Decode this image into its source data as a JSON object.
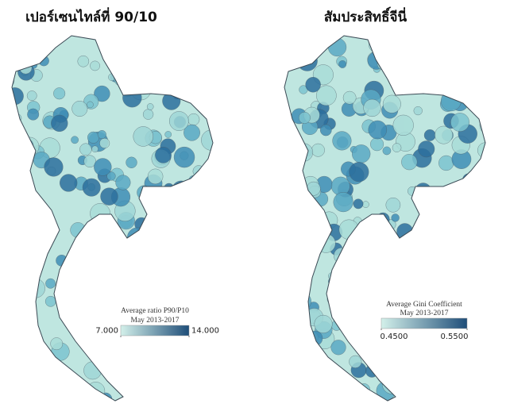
{
  "maps": [
    {
      "title": "เปอร์เซนไทล์ที่ 90/10",
      "legend": {
        "title": "Average ratio P90/P10",
        "subtitle": "May 2013-2017",
        "min": {
          "value": 7,
          "label": "7.000"
        },
        "max": {
          "value": 14,
          "label": "14.000"
        },
        "colors": [
          "#d3f0ea",
          "#1f4e79"
        ]
      }
    },
    {
      "title": "สัมประสิทธิ์จีนี่",
      "legend": {
        "title": "Average Gini Coefficient",
        "subtitle": "May 2013-2017",
        "min": {
          "value": 0.45,
          "label": "0.4500"
        },
        "max": {
          "value": 0.55,
          "label": "0.5500"
        },
        "colors": [
          "#d3f0ea",
          "#1f4e79"
        ]
      }
    }
  ]
}
